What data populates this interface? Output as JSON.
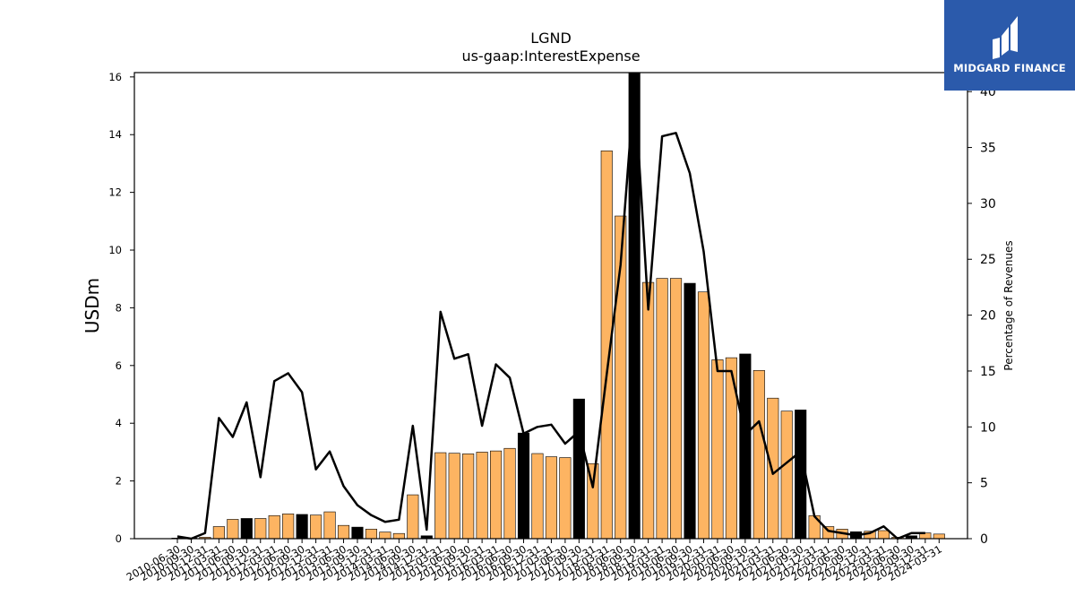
{
  "chart_data": {
    "type": "bar",
    "title": "LGND",
    "subtitle": "us-gaap:InterestExpense",
    "ylabel": "USDm",
    "y2label": "Percentage of Revenues",
    "ylim": [
      0,
      16.15
    ],
    "y2lim": [
      0,
      41.7
    ],
    "yticks": [
      0,
      2,
      4,
      6,
      8,
      10,
      12,
      14,
      16
    ],
    "y2ticks": [
      0,
      5,
      10,
      15,
      20,
      25,
      30,
      35,
      40
    ],
    "bar_color": "#fdb462",
    "highlight_color": "#000000",
    "line_color": "#000000",
    "categories": [
      "2010-06-30",
      "2010-09-30",
      "2010-12-31",
      "2011-03-31",
      "2011-06-30",
      "2011-09-30",
      "2011-12-31",
      "2012-03-31",
      "2012-06-30",
      "2012-09-30",
      "2012-12-31",
      "2013-03-31",
      "2013-06-30",
      "2013-09-30",
      "2013-12-31",
      "2014-03-31",
      "2014-06-30",
      "2014-09-30",
      "2014-12-31",
      "2015-03-31",
      "2015-06-30",
      "2015-09-30",
      "2015-12-31",
      "2016-03-31",
      "2016-06-30",
      "2016-09-30",
      "2016-12-31",
      "2017-03-31",
      "2017-06-30",
      "2017-09-30",
      "2017-12-31",
      "2018-03-31",
      "2018-06-30",
      "2018-09-30",
      "2018-12-31",
      "2019-03-31",
      "2019-06-30",
      "2019-09-30",
      "2019-12-31",
      "2020-03-31",
      "2020-06-30",
      "2020-09-30",
      "2020-12-31",
      "2021-03-31",
      "2021-06-30",
      "2021-09-30",
      "2021-12-31",
      "2022-03-31",
      "2022-06-30",
      "2022-09-30",
      "2022-12-31",
      "2023-03-31",
      "2023-06-30",
      "2023-09-30",
      "2023-12-31",
      "2024-03-31"
    ],
    "xtick_labels": [
      "2010-06-30",
      "2010-09-30",
      "2010-12-31",
      "2011-03-31",
      "2011-06-30",
      "2011-09-30",
      "2011-12-31",
      "2012-03-31",
      "2012-06-30",
      "2012-09-30",
      "2012-12-31",
      "2013-03-31",
      "2013-06-30",
      "2013-09-30",
      "2013-12-31",
      "2014-03-31",
      "2014-06-30",
      "2014-09-30",
      "2014-12-31",
      "2015-03-31",
      "2015-06-30",
      "2015-09-30",
      "2015-12-31",
      "2016-03-31",
      "2016-06-30",
      "2016-09-30",
      "2016-12-31",
      "2017-03-31",
      "2017-06-30",
      "2017-09-30",
      "2017-12-31",
      "2018-03-31",
      "2018-06-30",
      "2018-09-30",
      "2018-12-31",
      "2019-03-31",
      "2019-06-30",
      "2019-09-30",
      "2019-12-31",
      "2020-03-31",
      "2020-06-30",
      "2020-09-30",
      "2020-12-31",
      "2021-03-31",
      "2021-06-30",
      "2021-09-30",
      "2021-12-31",
      "2022-03-31",
      "2022-06-30",
      "2022-09-30",
      "2022-12-31",
      "2023-03-31",
      "2023-06-30",
      "2023-09-30",
      "2023-12-31",
      "2024-03-31"
    ],
    "series": [
      {
        "axis": "left",
        "kind": "bar",
        "values": [
          0.02,
          0.02,
          0.05,
          0.42,
          0.67,
          0.7,
          0.7,
          0.8,
          0.86,
          0.84,
          0.82,
          0.93,
          0.46,
          0.4,
          0.33,
          0.23,
          0.18,
          1.52,
          0.1,
          2.98,
          2.96,
          2.94,
          3.0,
          3.04,
          3.13,
          3.66,
          2.95,
          2.84,
          2.81,
          4.84,
          2.6,
          13.44,
          11.18,
          16.15,
          8.88,
          9.02,
          9.02,
          8.85,
          8.55,
          6.2,
          6.27,
          6.4,
          5.83,
          4.87,
          4.42,
          4.46,
          0.8,
          0.42,
          0.33,
          0.24,
          0.26,
          0.28,
          0.05,
          0.1,
          0.2,
          0.16
        ],
        "highlight": [
          false,
          false,
          false,
          false,
          false,
          true,
          false,
          false,
          false,
          true,
          false,
          false,
          false,
          true,
          false,
          false,
          false,
          false,
          true,
          false,
          false,
          false,
          false,
          false,
          false,
          true,
          false,
          false,
          false,
          true,
          false,
          false,
          false,
          true,
          false,
          false,
          false,
          true,
          false,
          false,
          false,
          true,
          false,
          false,
          false,
          true,
          false,
          false,
          false,
          true,
          false,
          false,
          false,
          true,
          false,
          false
        ]
      },
      {
        "axis": "right",
        "kind": "line",
        "values": [
          0.2,
          0.0,
          0.5,
          10.8,
          9.1,
          12.2,
          5.5,
          14.1,
          14.8,
          13.1,
          6.2,
          7.8,
          4.7,
          3.0,
          2.1,
          1.5,
          1.7,
          10.1,
          0.8,
          20.3,
          16.1,
          16.5,
          10.1,
          15.6,
          14.4,
          9.4,
          10.0,
          10.2,
          8.5,
          9.6,
          4.6,
          14.7,
          24.5,
          40.7,
          20.5,
          36.0,
          36.3,
          32.7,
          25.7,
          15.0,
          15.0,
          9.3,
          10.5,
          5.8,
          6.8,
          7.8,
          2.0,
          0.7,
          0.5,
          0.3,
          0.5,
          1.1,
          0.0,
          0.5,
          0.5,
          null
        ]
      }
    ]
  },
  "logo": {
    "text": "MIDGARD FINANCE"
  }
}
